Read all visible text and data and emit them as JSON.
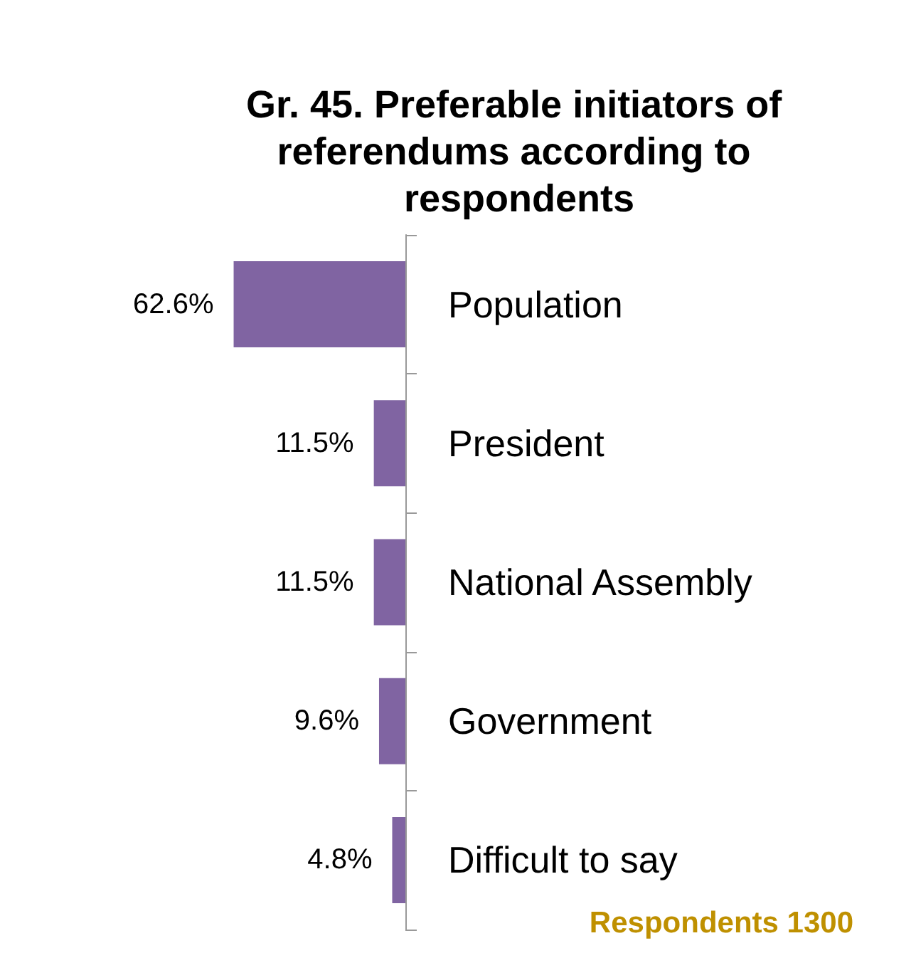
{
  "chart_data": {
    "type": "bar",
    "orientation": "horizontal",
    "title": "Gr. 45. Preferable initiators of referendums according to respondents",
    "categories": [
      "Population",
      "President",
      "National Assembly",
      "Government",
      "Difficult to say"
    ],
    "values": [
      62.6,
      11.5,
      11.5,
      9.6,
      4.8
    ],
    "value_labels": [
      "62.6%",
      "11.5%",
      "11.5%",
      "9.6%",
      "4.8%"
    ],
    "color": "#8064a2",
    "annotations": [
      "Respondents 1300"
    ]
  }
}
